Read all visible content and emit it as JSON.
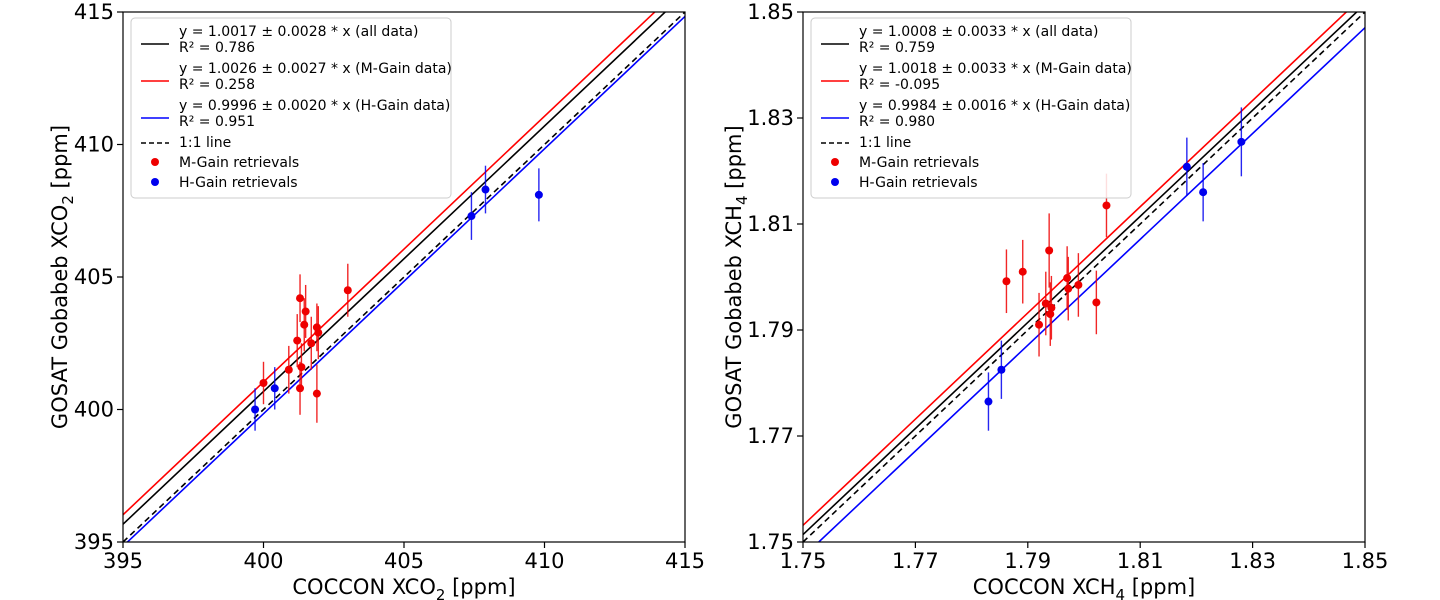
{
  "chart_data": [
    {
      "type": "scatter",
      "xlabel": "COCCON XCO",
      "xlabel_sub": "2",
      "xlabel_unit": " [ppm]",
      "ylabel": "GOSAT Gobabeb XCO",
      "ylabel_sub": "2",
      "ylabel_unit": " [ppm]",
      "xlim": [
        395,
        415
      ],
      "ylim": [
        395,
        415
      ],
      "xticks": [
        "395",
        "400",
        "405",
        "410",
        "415"
      ],
      "yticks": [
        "395",
        "400",
        "405",
        "410",
        "415"
      ],
      "legend_position": "top-left",
      "lines": [
        {
          "name": "y = 1.0017 ± 0.0028 * x (all data)",
          "r2": "R² = 0.786",
          "slope": 1.0017,
          "color": "#000000",
          "dash": false
        },
        {
          "name": "y = 1.0026 ± 0.0027 * x (M-Gain data)",
          "r2": "R² = 0.258",
          "slope": 1.0026,
          "color": "#ff0000",
          "dash": false
        },
        {
          "name": "y = 0.9996 ± 0.0020 * x (H-Gain data)",
          "r2": "R² = 0.951",
          "slope": 0.9996,
          "color": "#0000ff",
          "dash": false
        },
        {
          "name": "1:1 line",
          "r2": "",
          "slope": 1.0,
          "color": "#000000",
          "dash": true
        }
      ],
      "series": [
        {
          "name": "M-Gain retrievals",
          "color": "#ee0000",
          "points": [
            {
              "x": 400.0,
              "y": 401.0,
              "err": 0.8
            },
            {
              "x": 400.9,
              "y": 401.5,
              "err": 0.9
            },
            {
              "x": 401.2,
              "y": 402.6,
              "err": 1.0
            },
            {
              "x": 401.3,
              "y": 404.2,
              "err": 0.9
            },
            {
              "x": 401.35,
              "y": 401.6,
              "err": 0.9
            },
            {
              "x": 401.3,
              "y": 400.8,
              "err": 1.0
            },
            {
              "x": 401.45,
              "y": 403.2,
              "err": 1.0
            },
            {
              "x": 401.5,
              "y": 403.7,
              "err": 1.0
            },
            {
              "x": 401.7,
              "y": 402.5,
              "err": 1.0
            },
            {
              "x": 401.9,
              "y": 403.1,
              "err": 0.9
            },
            {
              "x": 401.95,
              "y": 402.9,
              "err": 1.0
            },
            {
              "x": 401.9,
              "y": 400.6,
              "err": 1.1
            },
            {
              "x": 403.0,
              "y": 404.5,
              "err": 1.0
            }
          ]
        },
        {
          "name": "H-Gain retrievals",
          "color": "#0000ee",
          "points": [
            {
              "x": 399.7,
              "y": 400.0,
              "err": 0.8
            },
            {
              "x": 400.4,
              "y": 400.8,
              "err": 0.8
            },
            {
              "x": 407.4,
              "y": 407.3,
              "err": 0.9
            },
            {
              "x": 407.9,
              "y": 408.3,
              "err": 0.9
            },
            {
              "x": 409.8,
              "y": 408.1,
              "err": 1.0
            }
          ]
        }
      ]
    },
    {
      "type": "scatter",
      "xlabel": "COCCON XCH",
      "xlabel_sub": "4",
      "xlabel_unit": " [ppm]",
      "ylabel": "GOSAT Gobabeb XCH",
      "ylabel_sub": "4",
      "ylabel_unit": " [ppm]",
      "xlim": [
        1.75,
        1.85
      ],
      "ylim": [
        1.75,
        1.85
      ],
      "xticks": [
        "1.75",
        "1.77",
        "1.79",
        "1.81",
        "1.83",
        "1.85"
      ],
      "yticks": [
        "1.75",
        "1.77",
        "1.79",
        "1.81",
        "1.83",
        "1.85"
      ],
      "legend_position": "top-left",
      "lines": [
        {
          "name": "y = 1.0008 ± 0.0033 * x (all data)",
          "r2": "R² = 0.759",
          "slope": 1.0008,
          "color": "#000000",
          "dash": false
        },
        {
          "name": "y = 1.0018 ± 0.0033 * x (M-Gain data)",
          "r2": "R² = -0.095",
          "slope": 1.0018,
          "color": "#ff0000",
          "dash": false
        },
        {
          "name": "y = 0.9984 ± 0.0016 * x (H-Gain data)",
          "r2": "R² = 0.980",
          "slope": 0.9984,
          "color": "#0000ff",
          "dash": false
        },
        {
          "name": "1:1 line",
          "r2": "",
          "slope": 1.0,
          "color": "#000000",
          "dash": true
        }
      ],
      "series": [
        {
          "name": "M-Gain retrievals",
          "color": "#ee0000",
          "points": [
            {
              "x": 1.7862,
              "y": 1.7992,
              "err": 0.006
            },
            {
              "x": 1.7891,
              "y": 1.801,
              "err": 0.006
            },
            {
              "x": 1.792,
              "y": 1.791,
              "err": 0.006
            },
            {
              "x": 1.7932,
              "y": 1.795,
              "err": 0.006
            },
            {
              "x": 1.7938,
              "y": 1.805,
              "err": 0.007
            },
            {
              "x": 1.794,
              "y": 1.793,
              "err": 0.006
            },
            {
              "x": 1.7942,
              "y": 1.7942,
              "err": 0.006
            },
            {
              "x": 1.797,
              "y": 1.7998,
              "err": 0.006
            },
            {
              "x": 1.7972,
              "y": 1.7978,
              "err": 0.006
            },
            {
              "x": 1.799,
              "y": 1.7985,
              "err": 0.006
            },
            {
              "x": 1.8022,
              "y": 1.7952,
              "err": 0.006
            },
            {
              "x": 1.804,
              "y": 1.8135,
              "err": 0.006
            }
          ]
        },
        {
          "name": "H-Gain retrievals",
          "color": "#0000ee",
          "points": [
            {
              "x": 1.783,
              "y": 1.7765,
              "err": 0.0055
            },
            {
              "x": 1.7853,
              "y": 1.7825,
              "err": 0.0055
            },
            {
              "x": 1.8183,
              "y": 1.8208,
              "err": 0.0055
            },
            {
              "x": 1.8212,
              "y": 1.816,
              "err": 0.0055
            },
            {
              "x": 1.828,
              "y": 1.8255,
              "err": 0.0065
            }
          ]
        }
      ]
    }
  ]
}
